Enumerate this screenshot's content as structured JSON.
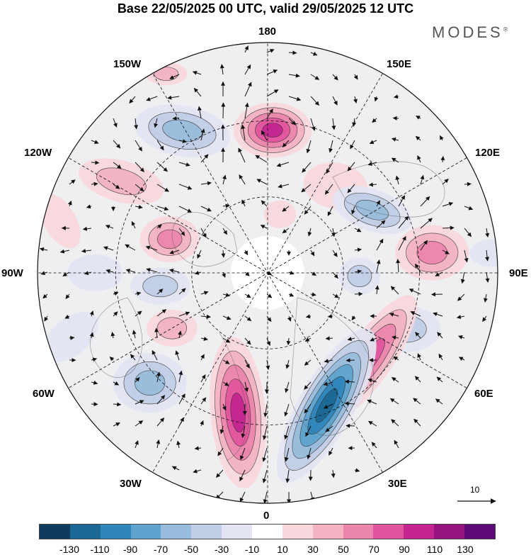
{
  "title": "Base 22/05/2025 00 UTC, valid 29/05/2025 12 UTC",
  "brand": "MODES",
  "brand_mark": "®",
  "longitude_labels": {
    "top": "180",
    "bottom": "0",
    "left": "90W",
    "right": "90E",
    "nw_upper": "150W",
    "nw_lower": "120W",
    "ne_upper": "150E",
    "ne_lower": "120E",
    "sw_upper": "60W",
    "sw_lower": "30W",
    "se_upper": "60E",
    "se_lower": "30E"
  },
  "reference_vector_label": "10",
  "colorbar": {
    "colors": [
      "#0f3c5c",
      "#1c6894",
      "#2f86bb",
      "#5ea4cf",
      "#98bddc",
      "#c2cee6",
      "#e3e4f1",
      "#ffffff",
      "#f8d8dc",
      "#f3b3c3",
      "#ec86ad",
      "#e2559e",
      "#c42590",
      "#97137f",
      "#5d0a78"
    ],
    "ticks": [
      "-130",
      "-110",
      "-90",
      "-70",
      "-50",
      "-30",
      "-10",
      "10",
      "30",
      "50",
      "70",
      "90",
      "110",
      "130"
    ]
  },
  "anomalies": [
    {
      "lon": 178,
      "r": 0.62,
      "a": 0.17,
      "b": 0.12,
      "rot": 0,
      "value": 95
    },
    {
      "lon": 142,
      "r": 0.48,
      "a": 0.14,
      "b": 0.1,
      "rot": 10,
      "value": 20
    },
    {
      "lon": 168,
      "r": 0.26,
      "a": 0.07,
      "b": 0.06,
      "rot": 0,
      "value": 20
    },
    {
      "lon": 211,
      "r": 0.72,
      "a": 0.21,
      "b": 0.11,
      "rot": 10,
      "value": -65
    },
    {
      "lon": 238,
      "r": 0.75,
      "a": 0.19,
      "b": 0.09,
      "rot": 15,
      "value": 35
    },
    {
      "lon": 251,
      "r": 0.45,
      "a": 0.13,
      "b": 0.1,
      "rot": 0,
      "value": 60
    },
    {
      "lon": 121,
      "r": 0.53,
      "a": 0.18,
      "b": 0.09,
      "rot": 20,
      "value": -60
    },
    {
      "lon": 97,
      "r": 0.72,
      "a": 0.16,
      "b": 0.12,
      "rot": 0,
      "value": 65
    },
    {
      "lon": 88,
      "r": 0.4,
      "a": 0.09,
      "b": 0.08,
      "rot": 0,
      "value": -35
    },
    {
      "lon": 68,
      "r": 0.65,
      "a": 0.15,
      "b": 0.1,
      "rot": 0,
      "value": -40
    },
    {
      "lon": 50,
      "r": 0.58,
      "a": 0.33,
      "b": 0.1,
      "rot": -55,
      "value": 80
    },
    {
      "lon": 24,
      "r": 0.63,
      "a": 0.38,
      "b": 0.12,
      "rot": -60,
      "value": -110
    },
    {
      "lon": 348,
      "r": 0.62,
      "a": 0.33,
      "b": 0.12,
      "rot": 85,
      "value": 90
    },
    {
      "lon": 313,
      "r": 0.7,
      "a": 0.16,
      "b": 0.13,
      "rot": 0,
      "value": -55
    },
    {
      "lon": 300,
      "r": 0.48,
      "a": 0.11,
      "b": 0.08,
      "rot": 0,
      "value": 35
    },
    {
      "lon": 277,
      "r": 0.47,
      "a": 0.13,
      "b": 0.08,
      "rot": 0,
      "value": -45
    },
    {
      "lon": 270,
      "r": 0.75,
      "a": 0.12,
      "b": 0.08,
      "rot": 0,
      "value": -20
    },
    {
      "lon": 256,
      "r": 0.93,
      "a": 0.13,
      "b": 0.07,
      "rot": 60,
      "value": 25
    },
    {
      "lon": 288,
      "r": 0.9,
      "a": 0.14,
      "b": 0.08,
      "rot": -40,
      "value": -20
    },
    {
      "lon": 95,
      "r": 0.98,
      "a": 0.1,
      "b": 0.06,
      "rot": 0,
      "value": -20
    },
    {
      "lon": 207,
      "r": 0.97,
      "a": 0.09,
      "b": 0.05,
      "rot": 0,
      "value": 35
    }
  ]
}
